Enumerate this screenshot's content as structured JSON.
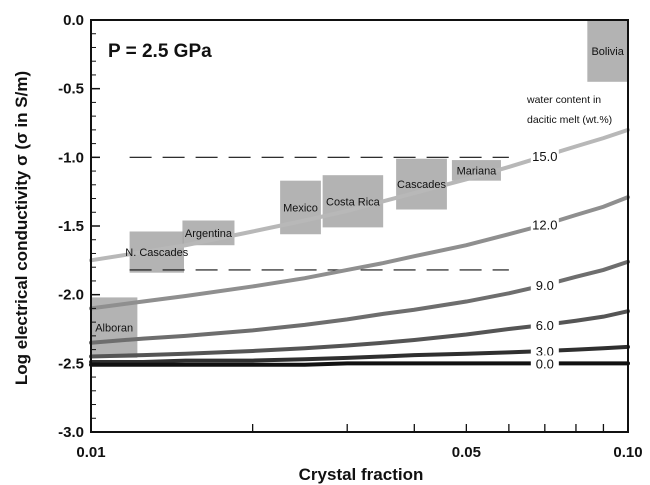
{
  "chart_data": {
    "type": "line",
    "panel_label": "P = 2.5 GPa",
    "xlabel": "Crystal fraction",
    "ylabel": "Log electrical conductivity σ (σ in S/m)",
    "x_scale": "log",
    "xlim": [
      0.01,
      0.1
    ],
    "ylim": [
      -3.0,
      0.0
    ],
    "x_ticks": [
      {
        "value": 0.01,
        "label": "0.01"
      },
      {
        "value": 0.05,
        "label": "0.05"
      },
      {
        "value": 0.1,
        "label": "0.10"
      }
    ],
    "y_ticks": [
      {
        "value": 0.0,
        "label": "0.0"
      },
      {
        "value": -0.5,
        "label": "-0.5"
      },
      {
        "value": -1.0,
        "label": "-1.0"
      },
      {
        "value": -1.5,
        "label": "-1.5"
      },
      {
        "value": -2.0,
        "label": "-2.0"
      },
      {
        "value": -2.5,
        "label": "-2.5"
      },
      {
        "value": -3.0,
        "label": "-3.0"
      }
    ],
    "legend_title": [
      "water content in",
      "dacitic melt (wt.%)"
    ],
    "x": [
      0.01,
      0.0125,
      0.015,
      0.02,
      0.025,
      0.03,
      0.035,
      0.04,
      0.05,
      0.06,
      0.07,
      0.08,
      0.09,
      0.1
    ],
    "series": [
      {
        "name": "15.0",
        "color": "#b8b8b8",
        "values": [
          -1.75,
          -1.69,
          -1.64,
          -1.54,
          -1.46,
          -1.39,
          -1.32,
          -1.26,
          -1.16,
          -1.07,
          -0.99,
          -0.92,
          -0.86,
          -0.8
        ]
      },
      {
        "name": "12.0",
        "color": "#8f8f8f",
        "values": [
          -2.1,
          -2.05,
          -2.01,
          -1.94,
          -1.88,
          -1.82,
          -1.77,
          -1.72,
          -1.64,
          -1.56,
          -1.49,
          -1.42,
          -1.36,
          -1.29
        ]
      },
      {
        "name": "9.0",
        "color": "#6e6e6e",
        "values": [
          -2.35,
          -2.32,
          -2.3,
          -2.26,
          -2.22,
          -2.18,
          -2.14,
          -2.11,
          -2.05,
          -1.99,
          -1.93,
          -1.87,
          -1.82,
          -1.76
        ]
      },
      {
        "name": "6.0",
        "color": "#555555",
        "values": [
          -2.45,
          -2.44,
          -2.43,
          -2.41,
          -2.39,
          -2.37,
          -2.35,
          -2.33,
          -2.29,
          -2.25,
          -2.22,
          -2.19,
          -2.16,
          -2.12
        ]
      },
      {
        "name": "3.0",
        "color": "#2f2f2f",
        "values": [
          -2.49,
          -2.49,
          -2.48,
          -2.48,
          -2.47,
          -2.46,
          -2.45,
          -2.44,
          -2.43,
          -2.42,
          -2.41,
          -2.4,
          -2.39,
          -2.38
        ]
      },
      {
        "name": "0.0",
        "color": "#111111",
        "values": [
          -2.51,
          -2.51,
          -2.51,
          -2.51,
          -2.51,
          -2.5,
          -2.5,
          -2.5,
          -2.5,
          -2.5,
          -2.5,
          -2.5,
          -2.5,
          -2.5
        ]
      }
    ],
    "reference_lines": [
      {
        "y": -1.0,
        "style": "dashed"
      },
      {
        "y": -1.82,
        "style": "dashed"
      }
    ],
    "regions": [
      {
        "name": "Bolivia",
        "x_range": [
          0.084,
          0.1
        ],
        "y_range": [
          -0.45,
          0.0
        ]
      },
      {
        "name": "Mariana",
        "x_range": [
          0.047,
          0.058
        ],
        "y_range": [
          -1.02,
          -1.17
        ]
      },
      {
        "name": "Cascades",
        "x_range": [
          0.037,
          0.046
        ],
        "y_range": [
          -1.01,
          -1.38
        ]
      },
      {
        "name": "Costa Rica",
        "x_range": [
          0.027,
          0.035
        ],
        "y_range": [
          -1.13,
          -1.51
        ]
      },
      {
        "name": "Mexico",
        "x_range": [
          0.0225,
          0.0268
        ],
        "y_range": [
          -1.17,
          -1.56
        ]
      },
      {
        "name": "Argentina",
        "x_range": [
          0.0148,
          0.0185
        ],
        "y_range": [
          -1.46,
          -1.64
        ]
      },
      {
        "name": "N. Cascades",
        "x_range": [
          0.0118,
          0.0149
        ],
        "y_range": [
          -1.54,
          -1.84
        ]
      },
      {
        "name": "Alboran",
        "x_range": [
          0.01,
          0.0122
        ],
        "y_range": [
          -2.02,
          -2.46
        ]
      }
    ],
    "grid": false
  }
}
